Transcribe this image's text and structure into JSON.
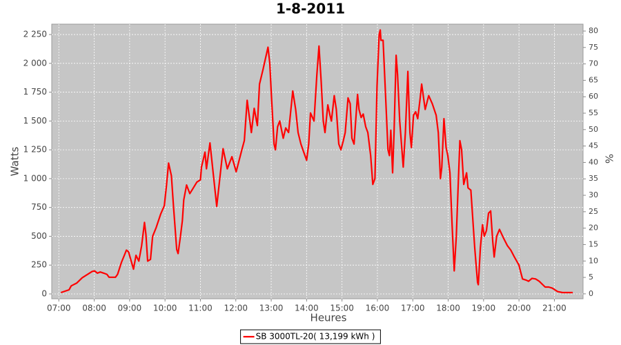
{
  "chart_data": {
    "type": "line",
    "title": "1-8-2011",
    "x_label": "Heures",
    "y_label": "Watts",
    "y2_label": "%",
    "xlim": [
      6.8,
      21.81
    ],
    "ylim": [
      -42,
      2340
    ],
    "y2lim": [
      -1.5,
      82.1
    ],
    "xticks": [
      {
        "value": 7,
        "label": "07:00"
      },
      {
        "value": 8,
        "label": "08:00"
      },
      {
        "value": 9,
        "label": "09:00"
      },
      {
        "value": 10,
        "label": "10:00"
      },
      {
        "value": 11,
        "label": "11:00"
      },
      {
        "value": 12,
        "label": "12:00"
      },
      {
        "value": 13,
        "label": "13:00"
      },
      {
        "value": 14,
        "label": "14:00"
      },
      {
        "value": 15,
        "label": "15:00"
      },
      {
        "value": 16,
        "label": "16:00"
      },
      {
        "value": 17,
        "label": "17:00"
      },
      {
        "value": 18,
        "label": "18:00"
      },
      {
        "value": 19,
        "label": "19:00"
      },
      {
        "value": 20,
        "label": "20:00"
      },
      {
        "value": 21,
        "label": "21:00"
      }
    ],
    "yticks": [
      0,
      250,
      500,
      750,
      {
        "value": 1000,
        "label": "1 000"
      },
      {
        "value": 1250,
        "label": "1 250"
      },
      {
        "value": 1500,
        "label": "1 500"
      },
      {
        "value": 1750,
        "label": "1 750"
      },
      {
        "value": 2000,
        "label": "2 000"
      },
      {
        "value": 2250,
        "label": "2 250"
      }
    ],
    "y2ticks": [
      0,
      5,
      10,
      15,
      20,
      25,
      30,
      35,
      40,
      45,
      50,
      55,
      60,
      65,
      70,
      75,
      80
    ],
    "grid": true,
    "legend": "bottom",
    "x": [
      7.06,
      7.29,
      7.35,
      7.51,
      7.66,
      7.84,
      7.94,
      8.01,
      8.09,
      8.17,
      8.27,
      8.36,
      8.42,
      8.6,
      8.66,
      8.77,
      8.85,
      8.91,
      8.97,
      9.05,
      9.11,
      9.18,
      9.26,
      9.34,
      9.42,
      9.46,
      9.51,
      9.59,
      9.65,
      9.75,
      9.88,
      9.98,
      10.04,
      10.1,
      10.18,
      10.24,
      10.33,
      10.37,
      10.43,
      10.49,
      10.53,
      10.61,
      10.7,
      10.8,
      10.9,
      11.0,
      11.03,
      11.13,
      11.17,
      11.27,
      11.46,
      11.64,
      11.76,
      11.89,
      12.01,
      12.17,
      12.24,
      12.32,
      12.44,
      12.52,
      12.61,
      12.67,
      12.77,
      12.91,
      12.96,
      13.0,
      13.08,
      13.12,
      13.18,
      13.24,
      13.34,
      13.41,
      13.49,
      13.61,
      13.69,
      13.76,
      13.84,
      13.92,
      14.0,
      14.06,
      14.11,
      14.21,
      14.29,
      14.35,
      14.41,
      14.47,
      14.52,
      14.6,
      14.66,
      14.7,
      14.78,
      14.84,
      14.91,
      14.97,
      15.03,
      15.09,
      15.17,
      15.23,
      15.28,
      15.34,
      15.44,
      15.48,
      15.54,
      15.6,
      15.67,
      15.73,
      15.81,
      15.87,
      15.93,
      15.99,
      16.05,
      16.08,
      16.1,
      16.16,
      16.22,
      16.3,
      16.34,
      16.38,
      16.43,
      16.47,
      16.53,
      16.57,
      16.63,
      16.73,
      16.79,
      16.86,
      16.92,
      16.96,
      17.02,
      17.08,
      17.14,
      17.21,
      17.25,
      17.35,
      17.45,
      17.55,
      17.66,
      17.72,
      17.78,
      17.82,
      17.88,
      17.94,
      17.99,
      18.05,
      18.11,
      18.17,
      18.23,
      18.29,
      18.33,
      18.38,
      18.44,
      18.52,
      18.56,
      18.64,
      18.75,
      18.83,
      18.85,
      18.91,
      18.97,
      19.02,
      19.08,
      19.14,
      19.2,
      19.26,
      19.3,
      19.37,
      19.45,
      19.57,
      19.67,
      19.77,
      19.87,
      20.0,
      20.04,
      20.1,
      20.2,
      20.27,
      20.37,
      20.47,
      20.57,
      20.74,
      20.84,
      20.94,
      21.09,
      21.23,
      21.52
    ],
    "series": [
      {
        "name": "SB 3000TL-20( 13,199 kWh )",
        "color": "#ff0000",
        "values": [
          12,
          36,
          70,
          95,
          140,
          175,
          195,
          200,
          180,
          190,
          180,
          170,
          145,
          145,
          170,
          275,
          335,
          380,
          365,
          280,
          215,
          335,
          285,
          420,
          620,
          515,
          285,
          300,
          500,
          575,
          695,
          765,
          935,
          1135,
          1025,
          755,
          385,
          350,
          485,
          635,
          815,
          945,
          870,
          920,
          970,
          990,
          1100,
          1230,
          1085,
          1310,
          760,
          1260,
          1085,
          1190,
          1060,
          1250,
          1330,
          1680,
          1400,
          1610,
          1460,
          1820,
          1950,
          2140,
          2000,
          1750,
          1300,
          1250,
          1450,
          1500,
          1350,
          1440,
          1400,
          1760,
          1600,
          1400,
          1300,
          1230,
          1160,
          1300,
          1570,
          1500,
          1900,
          2150,
          1850,
          1500,
          1400,
          1640,
          1550,
          1500,
          1720,
          1600,
          1300,
          1250,
          1320,
          1400,
          1700,
          1650,
          1350,
          1300,
          1730,
          1600,
          1530,
          1560,
          1450,
          1400,
          1200,
          950,
          1000,
          1800,
          2250,
          2290,
          2200,
          2200,
          1800,
          1250,
          1200,
          1420,
          1050,
          1400,
          2070,
          1900,
          1500,
          1100,
          1400,
          1930,
          1400,
          1270,
          1550,
          1580,
          1520,
          1700,
          1820,
          1600,
          1720,
          1650,
          1550,
          1400,
          1000,
          1100,
          1520,
          1270,
          1200,
          1050,
          600,
          200,
          500,
          1000,
          1330,
          1250,
          950,
          1050,
          920,
          900,
          400,
          100,
          80,
          400,
          600,
          500,
          550,
          700,
          720,
          450,
          320,
          500,
          560,
          480,
          420,
          380,
          320,
          250,
          200,
          130,
          120,
          110,
          135,
          130,
          110,
          60,
          60,
          50,
          20,
          12,
          12
        ]
      }
    ]
  }
}
